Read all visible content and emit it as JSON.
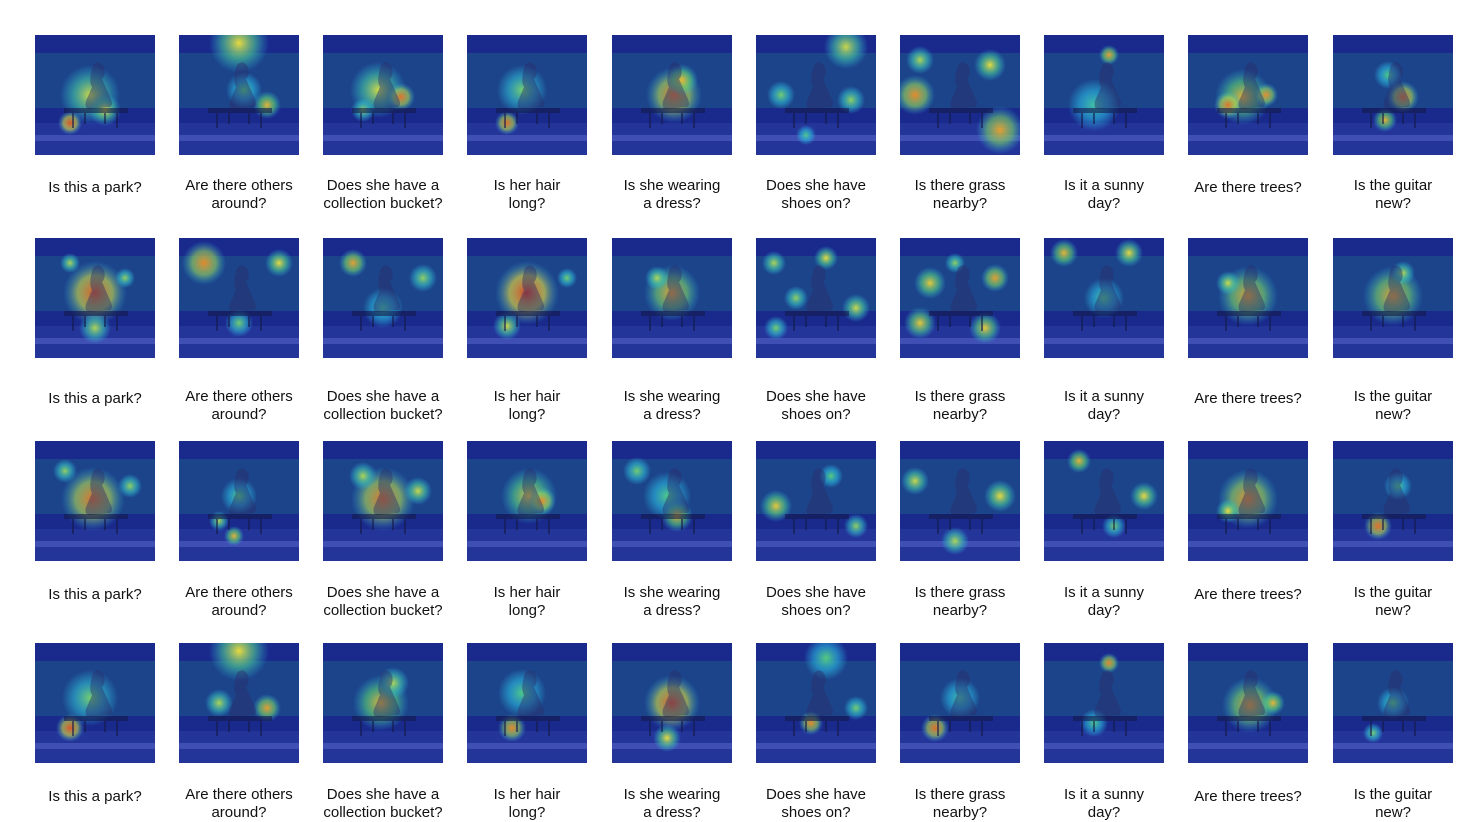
{
  "rows": [
    {
      "captions": [
        "Is this a park?",
        "Are there others\naround?",
        "Does she have a\ncollection bucket?",
        "Is her hair\nlong?",
        "Is she wearing\na dress?",
        "Does she have\nshoes on?",
        "Is there grass\nnearby?",
        "Is it a sunny\nday?",
        "Are there trees?",
        "Is the guitar\nnew?"
      ]
    },
    {
      "captions": [
        "Is this a park?",
        "Are there others\naround?",
        "Does she have a\ncollection bucket?",
        "Is her hair\nlong?",
        "Is she wearing\na dress?",
        "Does she have\nshoes on?",
        "Is there grass\nnearby?",
        "Is it a sunny\nday?",
        "Are there trees?",
        "Is the guitar\nnew?"
      ]
    },
    {
      "captions": [
        "Is this a park?",
        "Are there others\naround?",
        "Does she have a\ncollection bucket?",
        "Is her hair\nlong?",
        "Is she wearing\na dress?",
        "Does she have\nshoes on?",
        "Is there grass\nnearby?",
        "Is it a sunny\nday?",
        "Are there trees?",
        "Is the guitar\nnew?"
      ]
    },
    {
      "captions": [
        "Is this a park?",
        "Are there others\naround?",
        "Does she have a\ncollection bucket?",
        "Is her hair\nlong?",
        "Is she wearing\na dress?",
        "Does she have\nshoes on?",
        "Is there grass\nnearby?",
        "Is it a sunny\nday?",
        "Are there trees?",
        "Is the guitar\nnew?"
      ]
    }
  ],
  "colors": {
    "background": "#ffffff",
    "base_overlay": "#1a2a8c",
    "heat_low": "#29b6e0",
    "heat_mid": "#f4e23a",
    "heat_high": "#d81e1e"
  }
}
